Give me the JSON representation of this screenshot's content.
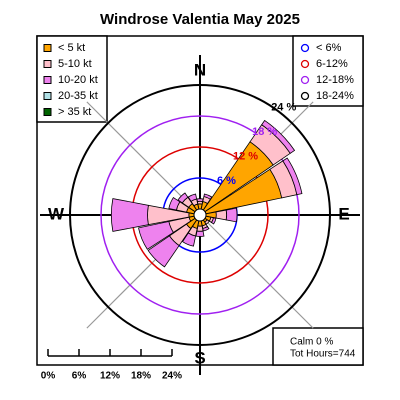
{
  "chart_data": {
    "type": "windrose",
    "title": "Windrose  Valentia May 2025",
    "categories": [
      "N",
      null,
      null,
      null,
      "E",
      null,
      null,
      null,
      "S",
      null,
      null,
      null,
      "W",
      null,
      null,
      null
    ],
    "series": [
      {
        "name": "< 5 kt",
        "color": "#ffa500",
        "values": [
          1,
          1.5,
          16,
          15,
          2,
          1,
          0.5,
          1,
          1,
          1.5,
          2,
          1,
          1,
          1.5,
          1.5,
          1
        ]
      },
      {
        "name": "5-10 kt",
        "color": "#ffc0cb",
        "values": [
          0.5,
          1,
          4,
          3,
          2,
          0.5,
          0.5,
          0.5,
          1,
          1.5,
          4,
          4,
          8,
          2,
          1.5,
          1
        ]
      },
      {
        "name": "10-20 kt",
        "color": "#ee82ee",
        "values": [
          0.5,
          0.5,
          1,
          1,
          2,
          0.5,
          0,
          0.5,
          1,
          2,
          5,
          6,
          7,
          1.5,
          1,
          1
        ]
      },
      {
        "name": "20-35 kt",
        "color": "#b0e0e6",
        "values": [
          0,
          0,
          0,
          0,
          0,
          0,
          0,
          0,
          0,
          0,
          0,
          0,
          0,
          0,
          0,
          0
        ]
      },
      {
        "name": "> 35 kt",
        "color": "#006400",
        "values": [
          0,
          0,
          0,
          0,
          0,
          0,
          0,
          0,
          0,
          0,
          0,
          0,
          0,
          0,
          0,
          0
        ]
      }
    ],
    "rlim": [
      0,
      24
    ],
    "rticks": [
      {
        "value": 6,
        "label": "6 %"
      },
      {
        "value": 12,
        "label": "12 %"
      },
      {
        "value": 18,
        "label": "18 %"
      },
      {
        "value": 24,
        "label": "24 %"
      }
    ],
    "ring_colors": [
      "#0000ff",
      "#dd0000",
      "#a020f0",
      "#000000"
    ],
    "ring_legend": [
      "< 6%",
      "6-12%",
      "12-18%",
      "18-24%"
    ],
    "scale_ticks": [
      {
        "value": 0,
        "label": "0%"
      },
      {
        "value": 6,
        "label": "6%"
      },
      {
        "value": 12,
        "label": "12%"
      },
      {
        "value": 18,
        "label": "18%"
      },
      {
        "value": 24,
        "label": "24%"
      }
    ],
    "calm_label": "Calm 0 %",
    "total_label": "Tot Hours=744"
  }
}
